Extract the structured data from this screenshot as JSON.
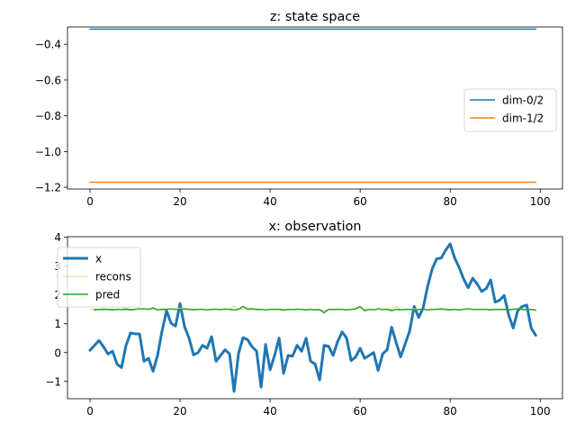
{
  "chart_data": [
    {
      "type": "line",
      "title": "z: state space",
      "xlim": [
        -5,
        104.95
      ],
      "ylim": [
        -1.2097,
        -0.3033
      ],
      "xticks": [
        0,
        20,
        40,
        60,
        80,
        100
      ],
      "yticks": [
        -1.2,
        -1.0,
        -0.8,
        -0.6,
        -0.4
      ],
      "ytick_labels": [
        "−1.2",
        "−1.0",
        "−0.8",
        "−0.6",
        "−0.4"
      ],
      "legend_position": "center-right",
      "series": [
        {
          "name": "dim-0/2",
          "color": "#1f77b4",
          "width": 1.5,
          "x": [
            0,
            99
          ],
          "y": [
            -0.315,
            -0.315
          ]
        },
        {
          "name": "dim-1/2",
          "color": "#ff7f0e",
          "width": 1.5,
          "x": [
            0,
            99
          ],
          "y": [
            -1.172,
            -1.172
          ]
        }
      ]
    },
    {
      "type": "line",
      "title": "x: observation",
      "xlim": [
        -5,
        104.95
      ],
      "ylim": [
        -1.6,
        4.02
      ],
      "xticks": [
        0,
        20,
        40,
        60,
        80,
        100
      ],
      "yticks": [
        -1,
        0,
        1,
        2,
        3,
        4
      ],
      "ytick_labels": [
        "−1",
        "0",
        "1",
        "2",
        "3",
        "4"
      ],
      "legend_position": "top-left",
      "series": [
        {
          "name": "x",
          "color": "#1f77b4",
          "width": 3,
          "x_start": 0,
          "y": [
            0.08,
            0.25,
            0.42,
            0.2,
            -0.05,
            0.05,
            -0.4,
            -0.52,
            0.25,
            0.68,
            0.65,
            0.65,
            -0.3,
            -0.2,
            -0.65,
            -0.1,
            0.75,
            1.45,
            1.02,
            0.92,
            1.7,
            0.9,
            0.5,
            -0.08,
            0.0,
            0.25,
            0.15,
            0.55,
            -0.3,
            -0.1,
            0.1,
            -0.05,
            -1.35,
            -0.02,
            0.52,
            0.45,
            0.2,
            0.05,
            -1.2,
            0.28,
            -0.6,
            -0.1,
            0.5,
            -0.72,
            -0.1,
            -0.12,
            0.25,
            0.05,
            0.5,
            -0.3,
            -0.4,
            -0.95,
            0.25,
            0.22,
            -0.1,
            0.38,
            0.72,
            0.5,
            -0.28,
            -0.15,
            0.15,
            -0.2,
            -0.1,
            0.0,
            -0.62,
            -0.05,
            0.1,
            0.88,
            0.35,
            -0.15,
            0.3,
            0.75,
            1.6,
            1.22,
            1.55,
            2.3,
            2.9,
            3.25,
            3.28,
            3.55,
            3.77,
            3.28,
            2.95,
            2.55,
            2.25,
            2.58,
            2.38,
            2.12,
            2.22,
            2.52,
            1.75,
            1.82,
            1.98,
            1.3,
            0.85,
            1.45,
            1.6,
            1.65,
            0.85,
            0.6
          ]
        },
        {
          "name": "recons",
          "color": "#e8c060",
          "width": 0.8,
          "x_start": 0,
          "y": [
            1.5,
            1.52,
            1.49,
            1.53,
            1.5,
            1.52,
            1.48,
            1.5,
            1.55,
            1.51,
            1.5,
            1.53,
            1.52,
            1.5,
            1.5,
            1.48,
            1.52,
            1.53,
            1.5,
            1.5,
            1.55,
            1.5,
            1.48,
            1.52,
            1.5,
            1.5,
            1.49,
            1.5,
            1.52,
            1.5,
            1.48,
            1.5,
            1.62,
            1.52,
            1.5,
            1.58,
            1.5,
            1.52,
            1.5,
            1.48,
            1.5,
            1.5,
            1.52,
            1.5,
            1.48,
            1.5,
            1.52,
            1.5,
            1.5,
            1.48,
            1.5,
            1.5,
            1.45,
            1.5,
            1.5,
            1.52,
            1.5,
            1.48,
            1.5,
            1.52,
            1.55,
            1.5,
            1.5,
            1.48,
            1.5,
            1.5,
            1.52,
            1.5,
            1.6,
            1.5,
            1.48,
            1.5,
            1.52,
            1.5,
            1.5,
            1.48,
            1.5,
            1.5,
            1.48,
            1.52,
            1.5,
            1.5,
            1.48,
            1.5,
            1.52,
            1.5,
            1.5,
            1.48,
            1.5,
            1.5,
            1.5,
            1.5,
            1.48,
            1.5,
            1.5,
            1.5,
            1.52,
            1.5,
            1.5,
            1.48
          ]
        },
        {
          "name": "pred",
          "color": "#2ca02c",
          "width": 1.5,
          "x_start": 1,
          "y": [
            1.48,
            1.5,
            1.49,
            1.5,
            1.48,
            1.5,
            1.49,
            1.5,
            1.48,
            1.5,
            1.52,
            1.52,
            1.5,
            1.55,
            1.48,
            1.5,
            1.49,
            1.52,
            1.5,
            1.49,
            1.52,
            1.5,
            1.48,
            1.5,
            1.5,
            1.48,
            1.5,
            1.5,
            1.49,
            1.51,
            1.5,
            1.48,
            1.5,
            1.6,
            1.5,
            1.52,
            1.49,
            1.5,
            1.48,
            1.5,
            1.5,
            1.5,
            1.47,
            1.5,
            1.49,
            1.5,
            1.5,
            1.48,
            1.5,
            1.48,
            1.49,
            1.38,
            1.5,
            1.49,
            1.5,
            1.5,
            1.48,
            1.5,
            1.52,
            1.6,
            1.45,
            1.5,
            1.48,
            1.52,
            1.49,
            1.5,
            1.45,
            1.5,
            1.48,
            1.5,
            1.5,
            1.47,
            1.5,
            1.5,
            1.48,
            1.5,
            1.5,
            1.52,
            1.49,
            1.48,
            1.5,
            1.48,
            1.5,
            1.52,
            1.5,
            1.49,
            1.5,
            1.5,
            1.48,
            1.5,
            1.49,
            1.5,
            1.48,
            1.5,
            1.52,
            1.5,
            1.48,
            1.5,
            1.47
          ]
        }
      ]
    }
  ]
}
